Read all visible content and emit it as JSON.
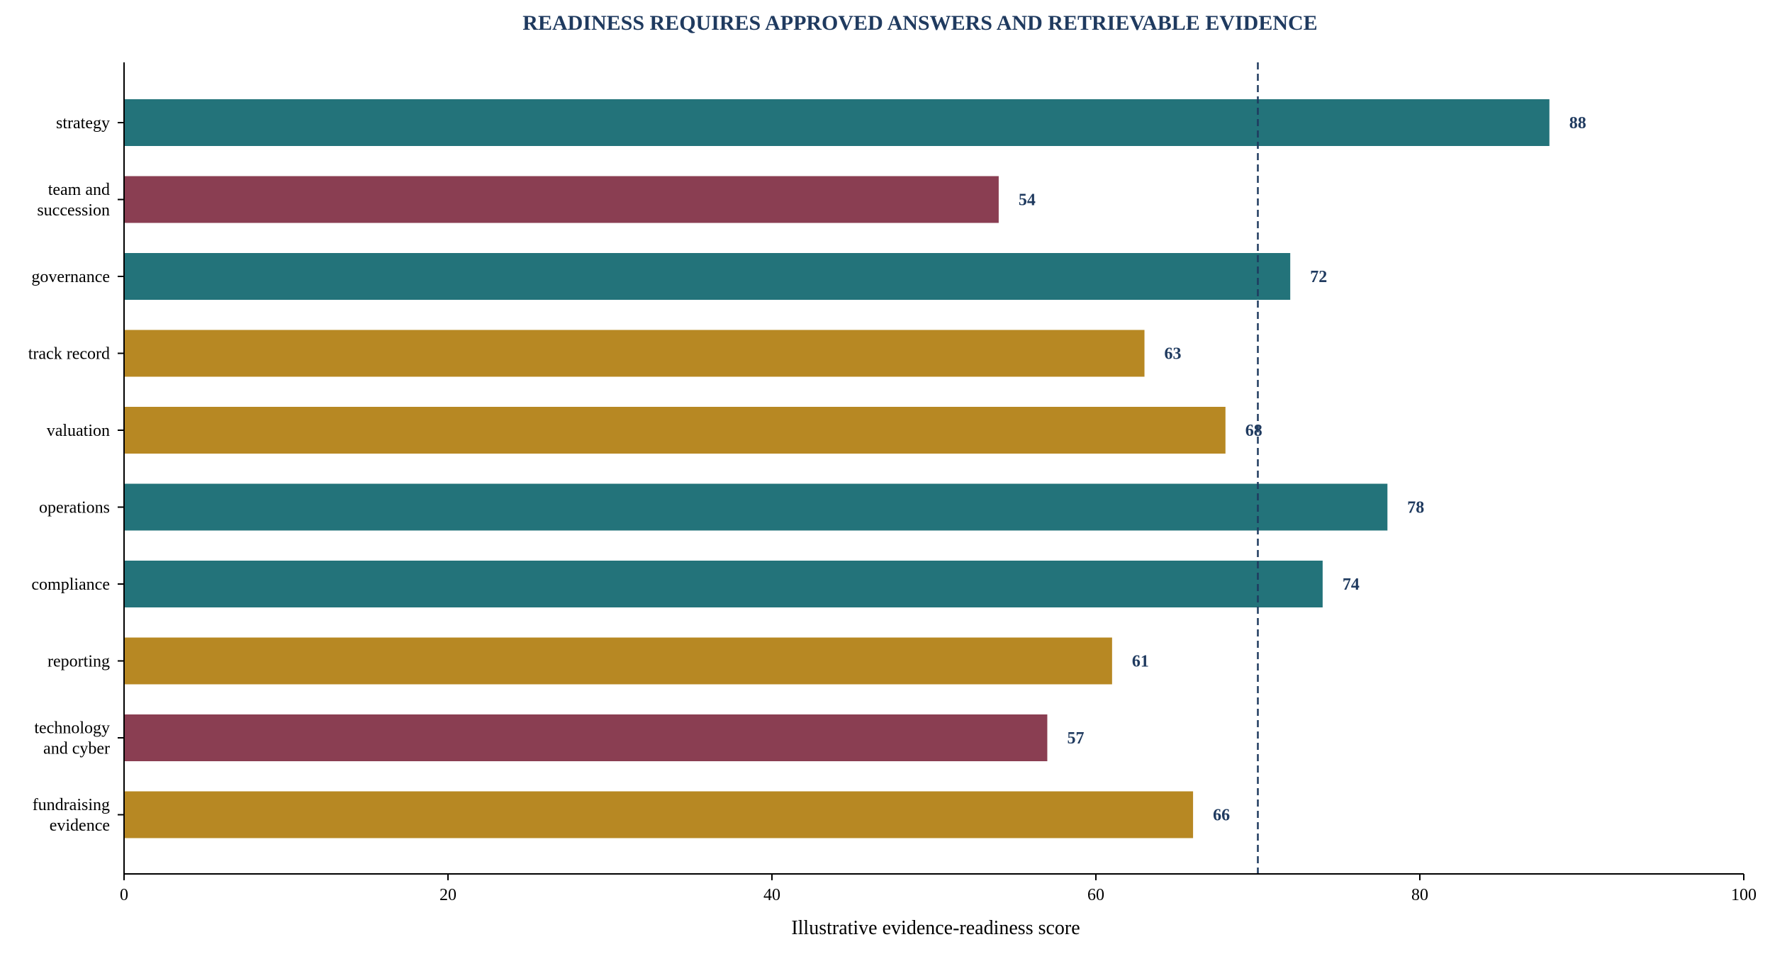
{
  "chart_data": {
    "type": "bar",
    "orientation": "horizontal",
    "title": "READINESS REQUIRES APPROVED ANSWERS AND RETRIEVABLE EVIDENCE",
    "xlabel": "Illustrative evidence-readiness score",
    "ylabel": "",
    "xlim": [
      0,
      100
    ],
    "xticks": [
      0,
      20,
      40,
      60,
      80,
      100
    ],
    "grid": false,
    "legend": false,
    "reference_line": {
      "x": 70,
      "style": "dashed",
      "color": "#1f3a5f"
    },
    "categories": [
      [
        "strategy"
      ],
      [
        "team and",
        "succession"
      ],
      [
        "governance"
      ],
      [
        "track record"
      ],
      [
        "valuation"
      ],
      [
        "operations"
      ],
      [
        "compliance"
      ],
      [
        "reporting"
      ],
      [
        "technology",
        "and cyber"
      ],
      [
        "fundraising",
        "evidence"
      ]
    ],
    "values": [
      88,
      54,
      72,
      63,
      68,
      78,
      74,
      61,
      57,
      66
    ],
    "bar_colors": [
      "#23737a",
      "#8a3e52",
      "#23737a",
      "#b78823",
      "#b78823",
      "#23737a",
      "#23737a",
      "#b78823",
      "#8a3e52",
      "#b78823"
    ],
    "value_label_color": "#1f3a5f",
    "title_color": "#1f3a5f"
  }
}
